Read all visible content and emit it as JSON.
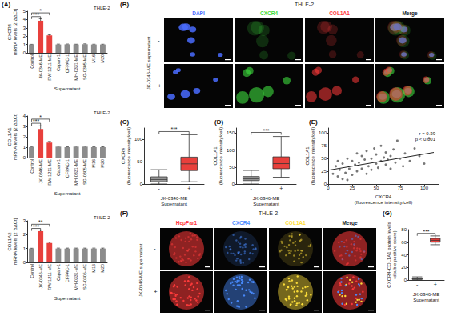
{
  "chart_data": [
    {
      "type": "bar",
      "title": "THLE-2",
      "y_label": "CXCR4\nmRNA levels [2⁻ΔΔCt]",
      "x_label": "Supernatant",
      "categories": [
        "Control",
        "JK-0346-ME",
        "RW-1211-ME",
        "Capan-1",
        "CFPAC-1",
        "MH-0331-ME",
        "SG-0305-ME",
        "M16",
        "M20"
      ],
      "values": [
        1,
        3.85,
        2.1,
        1,
        1.02,
        1,
        1.03,
        1,
        1
      ],
      "errors": [
        0.02,
        0.25,
        0.08,
        0.04,
        0.03,
        0.03,
        0.04,
        0.03,
        0.03
      ],
      "colors": [
        "#8c8c8c",
        "#e8403c",
        "#e8403c",
        "#8c8c8c",
        "#8c8c8c",
        "#8c8c8c",
        "#8c8c8c",
        "#8c8c8c",
        "#8c8c8c"
      ],
      "ylim": [
        0,
        5
      ],
      "yticks": [
        0,
        1,
        2,
        3,
        4,
        5
      ],
      "grid": false,
      "annotations": [
        {
          "from": 0,
          "to": 1,
          "y": 4.35,
          "text": "***"
        },
        {
          "from": 0,
          "to": 2,
          "y": 4.8,
          "text": "*"
        }
      ]
    },
    {
      "type": "bar",
      "title": "THLE-2",
      "y_label": "COL1A1\nmRNA levels [2⁻ΔΔCt]",
      "x_label": "Supernatant",
      "categories": [
        "Control",
        "JK-0346-ME",
        "RW-1211-ME",
        "Capan-1",
        "CFPAC-1",
        "MH-0331-ME",
        "SG-0305-ME",
        "M16",
        "M20"
      ],
      "values": [
        1,
        2.75,
        1.45,
        1.05,
        1,
        1.05,
        1.05,
        1,
        1
      ],
      "errors": [
        0.02,
        0.3,
        0.1,
        0.04,
        0.03,
        0.05,
        0.04,
        0.03,
        0.03
      ],
      "colors": [
        "#8c8c8c",
        "#e8403c",
        "#e8403c",
        "#8c8c8c",
        "#8c8c8c",
        "#8c8c8c",
        "#8c8c8c",
        "#8c8c8c",
        "#8c8c8c"
      ],
      "ylim": [
        0,
        4
      ],
      "yticks": [
        0,
        1,
        2,
        3,
        4
      ],
      "grid": false,
      "annotations": [
        {
          "from": 0,
          "to": 1,
          "y": 3.3,
          "text": "***"
        },
        {
          "from": 0,
          "to": 2,
          "y": 3.7,
          "text": "*"
        }
      ]
    },
    {
      "type": "bar",
      "title": "THLE-2",
      "y_label": "COL1A2\nmRNA levels [2⁻ΔΔCt]",
      "x_label": "Supernatant",
      "categories": [
        "Control",
        "JK-0346-ME",
        "RW-1211-ME",
        "Capan-1",
        "CFPAC-1",
        "MH-0331-ME",
        "SG-0305-ME",
        "M16",
        "M20"
      ],
      "values": [
        1,
        2.25,
        1.4,
        1,
        1,
        1,
        1,
        1,
        1
      ],
      "errors": [
        0.02,
        0.08,
        0.06,
        0.03,
        0.03,
        0.03,
        0.03,
        0.03,
        0.03
      ],
      "colors": [
        "#8c8c8c",
        "#e8403c",
        "#e8403c",
        "#8c8c8c",
        "#8c8c8c",
        "#8c8c8c",
        "#8c8c8c",
        "#8c8c8c",
        "#8c8c8c"
      ],
      "ylim": [
        0,
        3
      ],
      "yticks": [
        0,
        1,
        2,
        3
      ],
      "grid": false,
      "annotations": [
        {
          "from": 0,
          "to": 1,
          "y": 2.45,
          "text": "***"
        },
        {
          "from": 0,
          "to": 2,
          "y": 2.75,
          "text": "**"
        }
      ]
    },
    {
      "type": "boxplot",
      "y_label": "CXCR4\n(fluorescence intensity/cell)",
      "x_label": "JK-0346-ME\nSupernatant",
      "categories": [
        "-",
        "+"
      ],
      "values": [
        [
          0,
          5,
          10,
          16,
          32
        ],
        [
          5,
          30,
          45,
          60,
          110
        ]
      ],
      "colors": [
        "#9e9e9e",
        "#e8403c"
      ],
      "ylim": [
        0,
        125
      ],
      "yticks": [
        0,
        50,
        100
      ],
      "grid": false,
      "annotations": [
        {
          "from": 0,
          "to": 1,
          "y": 117,
          "text": "***"
        }
      ]
    },
    {
      "type": "boxplot",
      "y_label": "COL1A1\n(fluorescence intensity/cell)",
      "x_label": "JK-0346-ME\nSupernatant",
      "categories": [
        "-",
        "+"
      ],
      "values": [
        [
          0,
          10,
          15,
          22,
          40
        ],
        [
          20,
          45,
          60,
          80,
          140
        ]
      ],
      "colors": [
        "#9e9e9e",
        "#e8403c"
      ],
      "ylim": [
        0,
        165
      ],
      "yticks": [
        0,
        50,
        100,
        150
      ],
      "grid": false,
      "annotations": [
        {
          "from": 0,
          "to": 1,
          "y": 152,
          "text": "***"
        }
      ]
    },
    {
      "type": "scatter",
      "x_label": "CXCR4\n(fluorescence intensity/cell)",
      "y_label": "COL1A1\n(fluorescence intensity/cell)",
      "points": [
        [
          5,
          20
        ],
        [
          8,
          35
        ],
        [
          10,
          15
        ],
        [
          12,
          28
        ],
        [
          15,
          40
        ],
        [
          18,
          22
        ],
        [
          20,
          50
        ],
        [
          22,
          30
        ],
        [
          25,
          18
        ],
        [
          25,
          45
        ],
        [
          28,
          38
        ],
        [
          30,
          60
        ],
        [
          30,
          25
        ],
        [
          32,
          42
        ],
        [
          35,
          30
        ],
        [
          35,
          55
        ],
        [
          38,
          48
        ],
        [
          40,
          20
        ],
        [
          40,
          65
        ],
        [
          42,
          35
        ],
        [
          45,
          50
        ],
        [
          45,
          28
        ],
        [
          48,
          70
        ],
        [
          50,
          40
        ],
        [
          50,
          58
        ],
        [
          52,
          32
        ],
        [
          55,
          45
        ],
        [
          55,
          75
        ],
        [
          58,
          52
        ],
        [
          60,
          38
        ],
        [
          60,
          62
        ],
        [
          62,
          48
        ],
        [
          65,
          30
        ],
        [
          65,
          55
        ],
        [
          68,
          68
        ],
        [
          70,
          42
        ],
        [
          72,
          85
        ],
        [
          75,
          50
        ],
        [
          78,
          35
        ],
        [
          80,
          60
        ],
        [
          85,
          45
        ],
        [
          90,
          70
        ],
        [
          95,
          55
        ],
        [
          100,
          40
        ],
        [
          105,
          90
        ],
        [
          15,
          10
        ],
        [
          20,
          8
        ],
        [
          10,
          45
        ]
      ],
      "color": "#555555",
      "trend": {
        "x": [
          0,
          110
        ],
        "y": [
          27,
          62
        ],
        "color": "#222222"
      },
      "xlim": [
        0,
        115
      ],
      "xticks": [
        0,
        25,
        50,
        75,
        100
      ],
      "ylim": [
        0,
        110
      ],
      "yticks": [
        0,
        25,
        50,
        75,
        100
      ],
      "grid": false,
      "annotation": "r = 0.39\np < 0.001"
    },
    {
      "type": "boxplot",
      "y_label": "CXCR4-COL1A1 protein levels\n(double positive score)",
      "x_label": "JK-0346-ME\nSupernatant",
      "categories": [
        "-",
        "+"
      ],
      "values": [
        [
          0,
          1,
          2,
          3,
          5
        ],
        [
          56,
          60,
          63,
          66,
          70
        ]
      ],
      "colors": [
        "#9e9e9e",
        "#e8403c"
      ],
      "ylim": [
        0,
        80
      ],
      "yticks": [
        0,
        20,
        40,
        60,
        80
      ],
      "grid": false,
      "annotations": [
        {
          "from": 0,
          "to": 1,
          "y": 74,
          "text": "***"
        }
      ]
    }
  ],
  "panel_labels": [
    "(A)",
    "(B)",
    "(C)",
    "(D)",
    "(E)",
    "(F)",
    "(G)"
  ],
  "image_panels": [
    {
      "title": "THLE-2",
      "row_title": "JK-0346-ME supernatant",
      "rows": [
        "-",
        "+"
      ],
      "columns": [
        {
          "label": "DAPI",
          "color": "#4a6cff"
        },
        {
          "label": "CXCR4",
          "color": "#3ddc3d"
        },
        {
          "label": "COL1A1",
          "color": "#ff3b3b"
        },
        {
          "label": "Merge",
          "color": "#ffffff"
        }
      ]
    },
    {
      "title": "THLE-2",
      "row_title": "JK-0346-ME supernatant",
      "rows": [
        "-",
        "+"
      ],
      "columns": [
        {
          "label": "HepPar1",
          "color": "#ff3b3b"
        },
        {
          "label": "CXCR4",
          "color": "#4a8cff"
        },
        {
          "label": "COL1A1",
          "color": "#ffe03b"
        },
        {
          "label": "Merge",
          "color": "#ffffff"
        }
      ]
    }
  ]
}
